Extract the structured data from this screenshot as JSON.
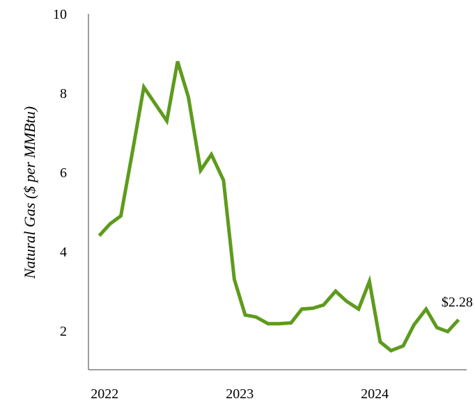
{
  "chart_data": {
    "type": "line",
    "ylabel": "Natural Gas ($ per MMBtu)",
    "xlabel": "",
    "ylim": [
      1,
      10
    ],
    "yticks": [
      2,
      4,
      6,
      8,
      10
    ],
    "x_tick_labels": [
      "2022",
      "2023",
      "2024"
    ],
    "x_tick_values": [
      2022.0,
      2023.0,
      2024.0
    ],
    "xlim": [
      2021.88,
      2024.68
    ],
    "grid": false,
    "line_color": "#5e9b1d",
    "series": [
      {
        "x": [
          2021.96,
          2022.04,
          2022.12,
          2022.21,
          2022.29,
          2022.38,
          2022.46,
          2022.54,
          2022.62,
          2022.71,
          2022.79,
          2022.88,
          2022.96,
          2023.04,
          2023.12,
          2023.21,
          2023.29,
          2023.38,
          2023.46,
          2023.54,
          2023.62,
          2023.71,
          2023.79,
          2023.88,
          2023.96,
          2024.04,
          2024.12,
          2024.21,
          2024.29,
          2024.38,
          2024.46,
          2024.54,
          2024.62
        ],
        "y": [
          4.4,
          4.7,
          4.9,
          6.6,
          8.15,
          7.7,
          7.3,
          8.8,
          7.9,
          6.05,
          6.45,
          5.8,
          3.3,
          2.4,
          2.35,
          2.18,
          2.18,
          2.2,
          2.55,
          2.57,
          2.65,
          3.0,
          2.75,
          2.55,
          3.25,
          1.72,
          1.5,
          1.62,
          2.15,
          2.55,
          2.08,
          1.98,
          2.28
        ]
      }
    ],
    "annotation": {
      "text": "$2.28",
      "x": 2024.62,
      "y": 2.28
    }
  }
}
